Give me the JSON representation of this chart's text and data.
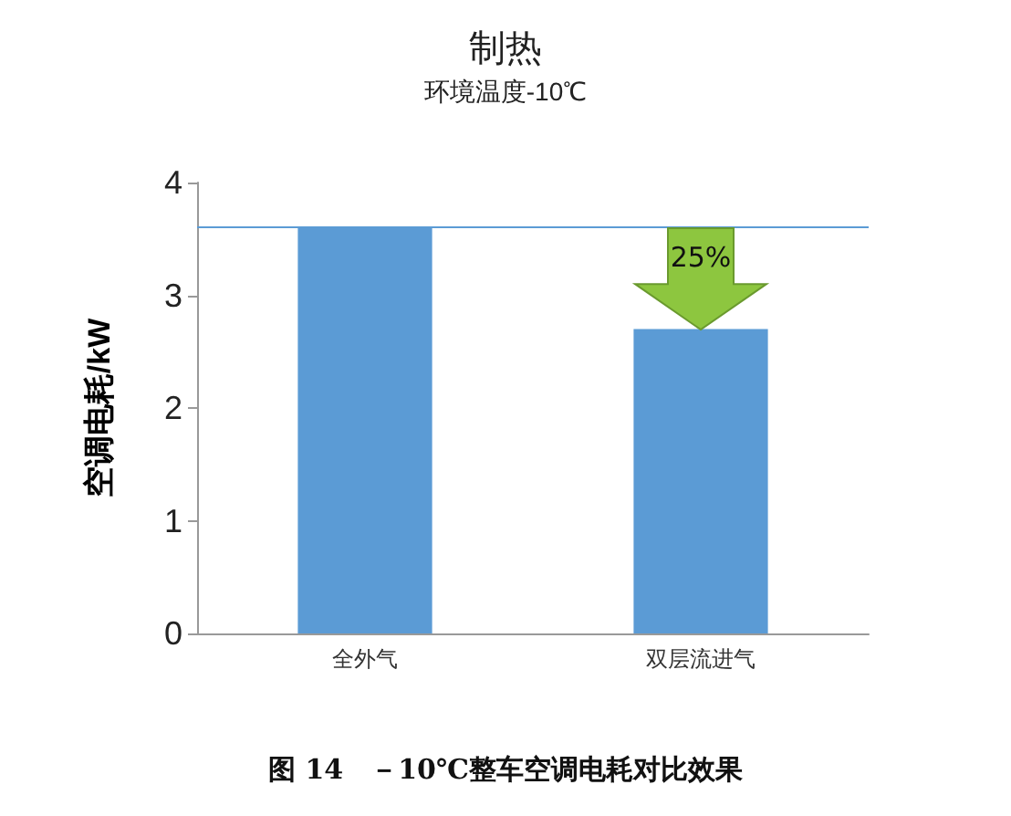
{
  "chart_data": {
    "type": "bar",
    "title": "制热",
    "subtitle": "环境温度-10℃",
    "ylabel": "空调电耗/kW",
    "categories": [
      "全外气",
      "双层流进气"
    ],
    "values": [
      3.6,
      2.7
    ],
    "color": "#5b9bd5",
    "ylim": [
      0,
      4
    ],
    "yticks": [
      0,
      1,
      2,
      3,
      4
    ],
    "grid": false,
    "ref_lines": [
      {
        "axis": "y",
        "value": 3.6,
        "color": "#5b9bd5"
      }
    ],
    "annotations": [
      "25%",
      "图 14　－10℃整车空调电耗对比效果"
    ]
  }
}
